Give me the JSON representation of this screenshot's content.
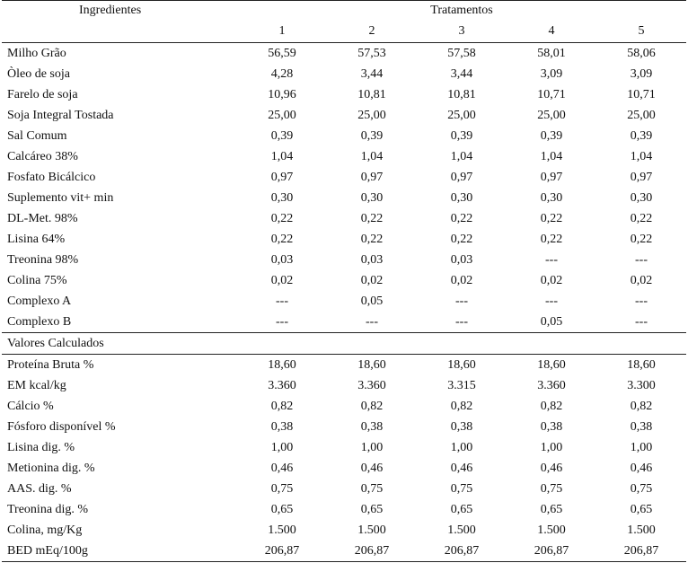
{
  "header": {
    "ingredients_label": "Ingredientes",
    "treatments_label": "Tratamentos",
    "treatment_numbers": [
      "1",
      "2",
      "3",
      "4",
      "5"
    ]
  },
  "ingredients": [
    {
      "name": "Milho Grão",
      "values": [
        "56,59",
        "57,53",
        "57,58",
        "58,01",
        "58,06"
      ]
    },
    {
      "name": "Òleo de soja",
      "values": [
        "4,28",
        "3,44",
        "3,44",
        "3,09",
        "3,09"
      ]
    },
    {
      "name": "Farelo de soja",
      "values": [
        "10,96",
        "10,81",
        "10,81",
        "10,71",
        "10,71"
      ]
    },
    {
      "name": "Soja Integral Tostada",
      "values": [
        "25,00",
        "25,00",
        "25,00",
        "25,00",
        "25,00"
      ]
    },
    {
      "name": "Sal Comum",
      "values": [
        "0,39",
        "0,39",
        "0,39",
        "0,39",
        "0,39"
      ]
    },
    {
      "name": "Calcáreo 38%",
      "values": [
        "1,04",
        "1,04",
        "1,04",
        "1,04",
        "1,04"
      ]
    },
    {
      "name": "Fosfato Bicálcico",
      "values": [
        "0,97",
        "0,97",
        "0,97",
        "0,97",
        "0,97"
      ]
    },
    {
      "name": "Suplemento vit+ min",
      "values": [
        "0,30",
        "0,30",
        "0,30",
        "0,30",
        "0,30"
      ]
    },
    {
      "name": "DL-Met. 98%",
      "values": [
        "0,22",
        "0,22",
        "0,22",
        "0,22",
        "0,22"
      ]
    },
    {
      "name": "Lisina 64%",
      "values": [
        "0,22",
        "0,22",
        "0,22",
        "0,22",
        "0,22"
      ]
    },
    {
      "name": "Treonina 98%",
      "values": [
        "0,03",
        "0,03",
        "0,03",
        "---",
        "---"
      ]
    },
    {
      "name": "Colina 75%",
      "values": [
        "0,02",
        "0,02",
        "0,02",
        "0,02",
        "0,02"
      ]
    },
    {
      "name": "Complexo A",
      "values": [
        "---",
        "0,05",
        "---",
        "---",
        "---"
      ]
    },
    {
      "name": "Complexo B",
      "values": [
        "---",
        "---",
        "---",
        "0,05",
        "---"
      ]
    }
  ],
  "calculated_section_label": "Valores Calculados",
  "calculated": [
    {
      "name": "Proteína Bruta %",
      "values": [
        "18,60",
        "18,60",
        "18,60",
        "18,60",
        "18,60"
      ]
    },
    {
      "name": "EM kcal/kg",
      "values": [
        "3.360",
        "3.360",
        "3.315",
        "3.360",
        "3.300"
      ]
    },
    {
      "name": "Cálcio %",
      "values": [
        "0,82",
        "0,82",
        "0,82",
        "0,82",
        "0,82"
      ]
    },
    {
      "name": "Fósforo disponível %",
      "values": [
        "0,38",
        "0,38",
        "0,38",
        "0,38",
        "0,38"
      ]
    },
    {
      "name": "Lisina dig. %",
      "values": [
        "1,00",
        "1,00",
        "1,00",
        "1,00",
        "1,00"
      ]
    },
    {
      "name": "Metionina dig. %",
      "values": [
        "0,46",
        "0,46",
        "0,46",
        "0,46",
        "0,46"
      ]
    },
    {
      "name": "AAS. dig. %",
      "values": [
        "0,75",
        "0,75",
        "0,75",
        "0,75",
        "0,75"
      ]
    },
    {
      "name": "Treonina dig. %",
      "values": [
        "0,65",
        "0,65",
        "0,65",
        "0,65",
        "0,65"
      ]
    },
    {
      "name": "Colina, mg/Kg",
      "values": [
        "1.500",
        "1.500",
        "1.500",
        "1.500",
        "1.500"
      ]
    },
    {
      "name": "BED mEq/100g",
      "values": [
        "206,87",
        "206,87",
        "206,87",
        "206,87",
        "206,87"
      ]
    }
  ]
}
